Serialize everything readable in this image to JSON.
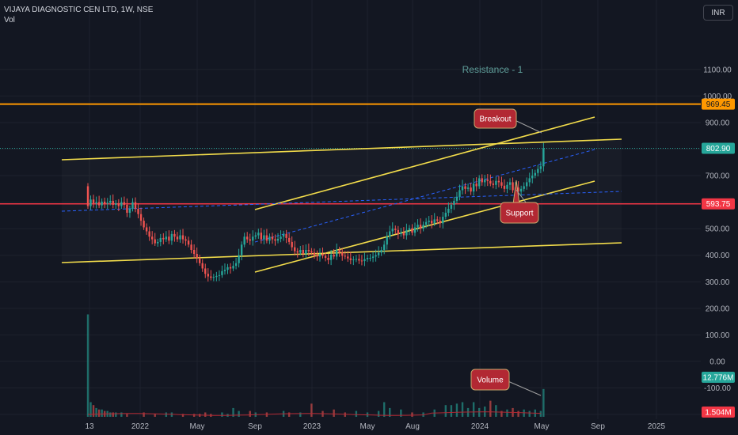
{
  "header": {
    "title": "VIJAYA DIAGNOSTIC CEN LTD, 1W, NSE",
    "sub": "Vol"
  },
  "currency_button": "INR",
  "colors": {
    "background": "#131722",
    "up": "#26a69a",
    "down": "#ef5350",
    "trendline": "#f2dc4b",
    "resistance": "#ff9800",
    "support_line": "#f23645",
    "callout_fill": "#b22833",
    "callout_border": "#c9a96e",
    "ma": "#2962ff"
  },
  "annotations": {
    "resistance_label": "Resistance - 1",
    "breakout": "Breakout",
    "support": "Support",
    "volume": "Volume"
  },
  "chart_data": {
    "type": "candlestick",
    "symbol": "VIJAYA DIAGNOSTIC CEN LTD",
    "interval": "1W",
    "exchange": "NSE",
    "currency": "INR",
    "ylim": [
      -280,
      1100
    ],
    "y_ticks": [
      "1100.00",
      "1000.00",
      "900.00",
      "800.00",
      "700.00",
      "600.00",
      "500.00",
      "400.00",
      "300.00",
      "200.00",
      "100.00",
      "0.00",
      "-100.00",
      "-200.00"
    ],
    "x_ticks": [
      "13",
      "2022",
      "May",
      "Sep",
      "2023",
      "May",
      "Aug",
      "2024",
      "May",
      "Sep",
      "2025"
    ],
    "price_tags": [
      {
        "label": "969.45",
        "value": 969.45,
        "kind": "resistance"
      },
      {
        "label": "802.90",
        "value": 802.9,
        "kind": "last"
      },
      {
        "label": "593.75",
        "value": 593.75,
        "kind": "support"
      },
      {
        "label": "12.776M",
        "value": -155,
        "kind": "volume"
      },
      {
        "label": "1.504M",
        "value": -240,
        "kind": "volume_ma"
      }
    ],
    "horizontal_lines": [
      {
        "name": "Resistance - 1",
        "value": 969.45
      },
      {
        "name": "support",
        "value": 593.75
      }
    ],
    "close_path": [
      [
        0,
        585
      ],
      [
        1,
        610
      ],
      [
        2,
        595
      ],
      [
        3,
        600
      ],
      [
        4,
        588
      ],
      [
        5,
        602
      ],
      [
        6,
        594
      ],
      [
        7,
        598
      ],
      [
        8,
        605
      ],
      [
        9,
        590
      ],
      [
        10,
        596
      ],
      [
        11,
        585
      ],
      [
        12,
        600
      ],
      [
        13,
        590
      ],
      [
        14,
        560
      ],
      [
        15,
        575
      ],
      [
        16,
        600
      ],
      [
        17,
        575
      ],
      [
        18,
        555
      ],
      [
        19,
        530
      ],
      [
        20,
        505
      ],
      [
        21,
        490
      ],
      [
        22,
        470
      ],
      [
        23,
        460
      ],
      [
        24,
        445
      ],
      [
        25,
        450
      ],
      [
        26,
        465
      ],
      [
        27,
        460
      ],
      [
        28,
        470
      ],
      [
        29,
        455
      ],
      [
        30,
        480
      ],
      [
        31,
        470
      ],
      [
        32,
        460
      ],
      [
        33,
        475
      ],
      [
        34,
        460
      ],
      [
        35,
        455
      ],
      [
        36,
        440
      ],
      [
        37,
        420
      ],
      [
        38,
        405
      ],
      [
        39,
        390
      ],
      [
        40,
        370
      ],
      [
        41,
        350
      ],
      [
        42,
        330
      ],
      [
        43,
        320
      ],
      [
        44,
        315
      ],
      [
        45,
        318
      ],
      [
        46,
        322
      ],
      [
        47,
        325
      ],
      [
        48,
        340
      ],
      [
        49,
        345
      ],
      [
        50,
        355
      ],
      [
        51,
        350
      ],
      [
        52,
        360
      ],
      [
        53,
        370
      ],
      [
        54,
        400
      ],
      [
        55,
        440
      ],
      [
        56,
        470
      ],
      [
        57,
        460
      ],
      [
        58,
        455
      ],
      [
        59,
        470
      ],
      [
        60,
        475
      ],
      [
        61,
        485
      ],
      [
        62,
        460
      ],
      [
        63,
        475
      ],
      [
        64,
        455
      ],
      [
        65,
        470
      ],
      [
        66,
        460
      ],
      [
        67,
        455
      ],
      [
        68,
        462
      ],
      [
        69,
        470
      ],
      [
        70,
        480
      ],
      [
        71,
        465
      ],
      [
        72,
        450
      ],
      [
        73,
        430
      ],
      [
        74,
        415
      ],
      [
        75,
        410
      ],
      [
        76,
        420
      ],
      [
        77,
        405
      ],
      [
        78,
        420
      ],
      [
        79,
        415
      ],
      [
        80,
        410
      ],
      [
        81,
        400
      ],
      [
        82,
        395
      ],
      [
        83,
        405
      ],
      [
        84,
        398
      ],
      [
        85,
        390
      ],
      [
        86,
        382
      ],
      [
        87,
        402
      ],
      [
        88,
        395
      ],
      [
        89,
        420
      ],
      [
        90,
        410
      ],
      [
        91,
        398
      ],
      [
        92,
        395
      ],
      [
        93,
        388
      ],
      [
        94,
        382
      ],
      [
        95,
        384
      ],
      [
        96,
        386
      ],
      [
        97,
        380
      ],
      [
        98,
        378
      ],
      [
        99,
        385
      ],
      [
        100,
        390
      ],
      [
        101,
        390
      ],
      [
        102,
        395
      ],
      [
        103,
        400
      ],
      [
        104,
        410
      ],
      [
        105,
        420
      ],
      [
        106,
        440
      ],
      [
        107,
        470
      ],
      [
        108,
        490
      ],
      [
        109,
        500
      ],
      [
        110,
        495
      ],
      [
        111,
        480
      ],
      [
        112,
        485
      ],
      [
        113,
        475
      ],
      [
        114,
        495
      ],
      [
        115,
        502
      ],
      [
        116,
        485
      ],
      [
        117,
        505
      ],
      [
        118,
        515
      ],
      [
        119,
        500
      ],
      [
        120,
        515
      ],
      [
        121,
        525
      ],
      [
        122,
        530
      ],
      [
        123,
        520
      ],
      [
        124,
        535
      ],
      [
        125,
        530
      ],
      [
        126,
        520
      ],
      [
        127,
        545
      ],
      [
        128,
        560
      ],
      [
        129,
        575
      ],
      [
        130,
        590
      ],
      [
        131,
        605
      ],
      [
        132,
        620
      ],
      [
        133,
        645
      ],
      [
        134,
        660
      ],
      [
        135,
        650
      ],
      [
        136,
        655
      ],
      [
        137,
        640
      ],
      [
        138,
        670
      ],
      [
        139,
        660
      ],
      [
        140,
        690
      ],
      [
        141,
        675
      ],
      [
        142,
        685
      ],
      [
        143,
        680
      ],
      [
        144,
        670
      ],
      [
        145,
        665
      ],
      [
        146,
        680
      ],
      [
        147,
        675
      ],
      [
        148,
        662
      ],
      [
        149,
        650
      ],
      [
        150,
        665
      ],
      [
        151,
        675
      ],
      [
        152,
        645
      ],
      [
        153,
        655
      ],
      [
        154,
        640
      ],
      [
        155,
        650
      ],
      [
        156,
        660
      ],
      [
        157,
        675
      ],
      [
        158,
        690
      ],
      [
        159,
        700
      ],
      [
        160,
        710
      ],
      [
        161,
        725
      ],
      [
        162,
        735
      ],
      [
        163,
        802
      ]
    ],
    "volume_spikes": [
      [
        0,
        70
      ],
      [
        1,
        10
      ],
      [
        2,
        8
      ],
      [
        3,
        6
      ],
      [
        4,
        5
      ],
      [
        5,
        5
      ],
      [
        6,
        4
      ],
      [
        7,
        4
      ],
      [
        8,
        3
      ],
      [
        9,
        3
      ],
      [
        10,
        3
      ],
      [
        12,
        3
      ],
      [
        14,
        2
      ],
      [
        20,
        3
      ],
      [
        24,
        2
      ],
      [
        28,
        3
      ],
      [
        30,
        3
      ],
      [
        34,
        2
      ],
      [
        38,
        2
      ],
      [
        40,
        2
      ],
      [
        42,
        3
      ],
      [
        44,
        2
      ],
      [
        48,
        3
      ],
      [
        50,
        2
      ],
      [
        52,
        6
      ],
      [
        54,
        4
      ],
      [
        58,
        4
      ],
      [
        60,
        3
      ],
      [
        64,
        3
      ],
      [
        70,
        4
      ],
      [
        72,
        3
      ],
      [
        76,
        3
      ],
      [
        80,
        9
      ],
      [
        84,
        4
      ],
      [
        88,
        5
      ],
      [
        92,
        3
      ],
      [
        96,
        4
      ],
      [
        100,
        3
      ],
      [
        104,
        4
      ],
      [
        106,
        10
      ],
      [
        108,
        6
      ],
      [
        112,
        5
      ],
      [
        116,
        3
      ],
      [
        120,
        3
      ],
      [
        124,
        5
      ],
      [
        128,
        8
      ],
      [
        130,
        8
      ],
      [
        132,
        9
      ],
      [
        134,
        10
      ],
      [
        136,
        6
      ],
      [
        138,
        10
      ],
      [
        140,
        6
      ],
      [
        142,
        7
      ],
      [
        144,
        11
      ],
      [
        146,
        8
      ],
      [
        148,
        4
      ],
      [
        150,
        5
      ],
      [
        152,
        6
      ],
      [
        154,
        4
      ],
      [
        156,
        5
      ],
      [
        158,
        4
      ],
      [
        160,
        5
      ],
      [
        162,
        4
      ],
      [
        163,
        19
      ]
    ]
  }
}
